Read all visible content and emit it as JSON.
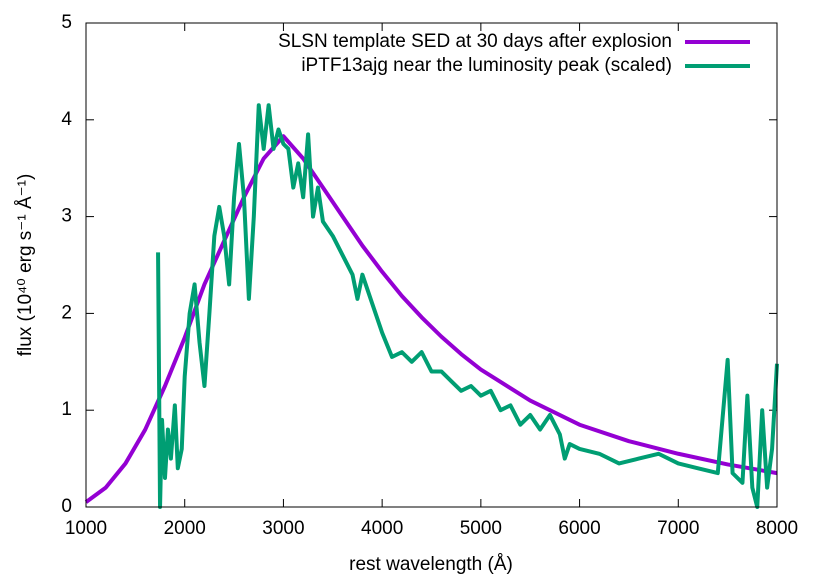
{
  "chart_data": {
    "type": "line",
    "xlabel": "rest wavelength (Å)",
    "ylabel": "flux (10⁴⁰ erg s⁻¹ Å⁻¹)",
    "xlim": [
      1000,
      8000
    ],
    "xticks": [
      1000,
      2000,
      3000,
      4000,
      5000,
      6000,
      7000,
      8000
    ],
    "ylim": [
      0,
      5
    ],
    "yticks": [
      0,
      1,
      2,
      3,
      4,
      5
    ],
    "legend": "top-right",
    "grid": false,
    "series": [
      {
        "name": "SLSN template SED at 30 days after explosion",
        "color": "#9400d3",
        "x": [
          1000,
          1200,
          1400,
          1600,
          1800,
          2000,
          2200,
          2400,
          2600,
          2800,
          3000,
          3200,
          3400,
          3600,
          3800,
          4000,
          4200,
          4400,
          4600,
          4800,
          5000,
          5500,
          6000,
          6500,
          7000,
          7500,
          8000
        ],
        "values": [
          0.05,
          0.2,
          0.45,
          0.8,
          1.25,
          1.75,
          2.3,
          2.75,
          3.2,
          3.6,
          3.83,
          3.6,
          3.3,
          3.0,
          2.7,
          2.43,
          2.18,
          1.96,
          1.76,
          1.58,
          1.42,
          1.1,
          0.85,
          0.68,
          0.55,
          0.44,
          0.35
        ]
      },
      {
        "name": "iPTF13ajg near the luminosity peak (scaled)",
        "color": "#009e73",
        "x": [
          1730,
          1750,
          1770,
          1800,
          1830,
          1860,
          1900,
          1930,
          1970,
          2000,
          2050,
          2100,
          2150,
          2200,
          2250,
          2300,
          2350,
          2400,
          2450,
          2500,
          2550,
          2600,
          2650,
          2700,
          2750,
          2800,
          2850,
          2900,
          2950,
          3000,
          3050,
          3100,
          3150,
          3200,
          3250,
          3300,
          3350,
          3400,
          3500,
          3600,
          3700,
          3750,
          3800,
          3900,
          4000,
          4100,
          4200,
          4300,
          4400,
          4500,
          4600,
          4700,
          4800,
          4900,
          5000,
          5100,
          5200,
          5300,
          5400,
          5500,
          5600,
          5700,
          5800,
          5850,
          5900,
          6000,
          6200,
          6400,
          6600,
          6800,
          7000,
          7200,
          7400,
          7500,
          7550,
          7650,
          7700,
          7750,
          7800,
          7850,
          7900,
          7950,
          8000
        ],
        "values": [
          2.63,
          0,
          0.9,
          0.3,
          0.8,
          0.5,
          1.05,
          0.4,
          0.6,
          1.35,
          2.0,
          2.3,
          1.7,
          1.25,
          2.0,
          2.8,
          3.1,
          2.8,
          2.3,
          3.2,
          3.75,
          3.2,
          2.15,
          3.0,
          4.15,
          3.7,
          4.15,
          3.7,
          3.9,
          3.75,
          3.7,
          3.3,
          3.55,
          3.2,
          3.85,
          3.0,
          3.3,
          2.95,
          2.8,
          2.6,
          2.4,
          2.15,
          2.4,
          2.1,
          1.8,
          1.55,
          1.6,
          1.5,
          1.6,
          1.4,
          1.4,
          1.3,
          1.2,
          1.25,
          1.15,
          1.2,
          1.0,
          1.05,
          0.85,
          0.95,
          0.8,
          0.95,
          0.75,
          0.5,
          0.65,
          0.6,
          0.55,
          0.45,
          0.5,
          0.55,
          0.45,
          0.4,
          0.35,
          1.52,
          0.35,
          0.25,
          1.15,
          0.2,
          0,
          1.0,
          0.2,
          0.6,
          1.48
        ]
      }
    ]
  }
}
